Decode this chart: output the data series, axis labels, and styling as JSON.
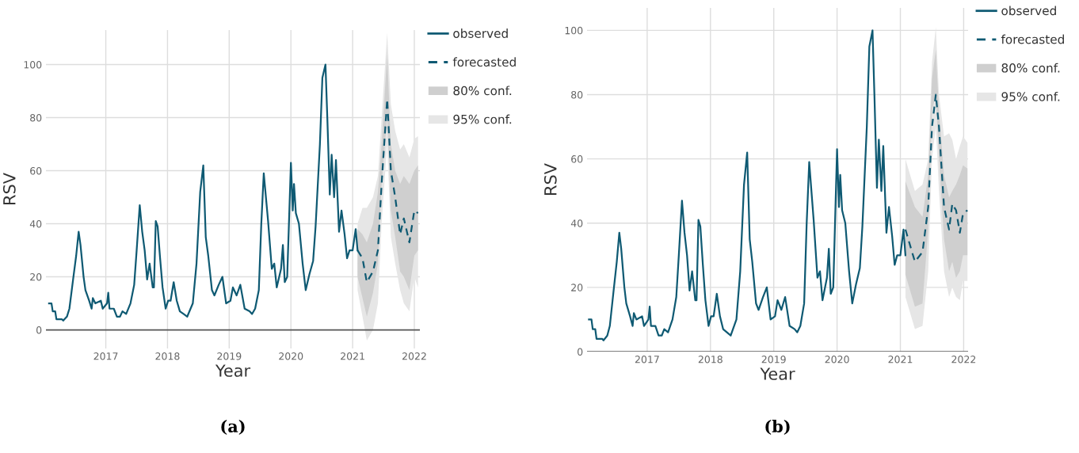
{
  "chart_data": [
    {
      "type": "line",
      "xlabel": "Year",
      "ylabel": "RSV",
      "xlim": [
        2016.03,
        2022.09
      ],
      "ylim": [
        -7,
        113
      ],
      "xticks": [
        2017,
        2018,
        2019,
        2020,
        2021,
        2022
      ],
      "yticks": [
        0,
        20,
        40,
        60,
        80,
        100
      ],
      "grid": true,
      "legend": "right",
      "annotations": [
        "(a)"
      ],
      "series": [
        {
          "name": "observed",
          "color": "#0f5a73",
          "line_style": "solid",
          "x": [
            2016.08,
            2016.12,
            2016.14,
            2016.18,
            2016.2,
            2016.29,
            2016.31,
            2016.37,
            2016.41,
            2016.47,
            2016.52,
            2016.56,
            2016.59,
            2016.64,
            2016.67,
            2016.73,
            2016.77,
            2016.79,
            2016.83,
            2016.92,
            2016.95,
            2017.02,
            2017.04,
            2017.06,
            2017.13,
            2017.18,
            2017.23,
            2017.27,
            2017.33,
            2017.4,
            2017.46,
            2017.5,
            2017.55,
            2017.59,
            2017.63,
            2017.67,
            2017.71,
            2017.76,
            2017.78,
            2017.81,
            2017.84,
            2017.88,
            2017.92,
            2017.97,
            2018.01,
            2018.05,
            2018.1,
            2018.15,
            2018.2,
            2018.26,
            2018.32,
            2018.41,
            2018.47,
            2018.53,
            2018.58,
            2018.62,
            2018.66,
            2018.72,
            2018.76,
            2018.83,
            2018.89,
            2018.95,
            2019.02,
            2019.06,
            2019.12,
            2019.18,
            2019.25,
            2019.33,
            2019.37,
            2019.42,
            2019.48,
            2019.52,
            2019.56,
            2019.63,
            2019.69,
            2019.73,
            2019.77,
            2019.84,
            2019.87,
            2019.9,
            2019.94,
            2020.0,
            2020.03,
            2020.05,
            2020.08,
            2020.13,
            2020.19,
            2020.24,
            2020.3,
            2020.36,
            2020.4,
            2020.47,
            2020.51,
            2020.56,
            2020.59,
            2020.63,
            2020.66,
            2020.7,
            2020.73,
            2020.78,
            2020.82,
            2020.87,
            2020.91,
            2020.95,
            2021.0,
            2021.05,
            2021.08
          ],
          "values": [
            10,
            10,
            7,
            7,
            4,
            4,
            3.5,
            5,
            8,
            19,
            28,
            37,
            32,
            20,
            15,
            11,
            8,
            12,
            10,
            11,
            8,
            10,
            14,
            8,
            8,
            5,
            5,
            7,
            6,
            10,
            17,
            30,
            47,
            37,
            30,
            19,
            25,
            16,
            16,
            41,
            39,
            27,
            16,
            8,
            11,
            11,
            18,
            11,
            7,
            6,
            5,
            10,
            25,
            52,
            62,
            35,
            28,
            15,
            13,
            17,
            20,
            10,
            11,
            16,
            13,
            17,
            8,
            7,
            6,
            8,
            15,
            40,
            59,
            41,
            23,
            25,
            16,
            23,
            32,
            18,
            20,
            63,
            45,
            55,
            44,
            40,
            25,
            15,
            21,
            26,
            39,
            70,
            95,
            100,
            80,
            51,
            66,
            50,
            64,
            37,
            45,
            36,
            27,
            30,
            30,
            38,
            30
          ]
        },
        {
          "name": "forecasted",
          "color": "#0f5a73",
          "line_style": "dashed",
          "x": [
            2021.08,
            2021.16,
            2021.23,
            2021.33,
            2021.41,
            2021.47,
            2021.56,
            2021.62,
            2021.69,
            2021.77,
            2021.83,
            2021.92,
            2022.0,
            2022.06
          ],
          "values": [
            30,
            27,
            18,
            22,
            30,
            55,
            87,
            60,
            50,
            36,
            42,
            33,
            45,
            44
          ]
        },
        {
          "name": "80% conf.",
          "color": "#cfcfcf",
          "x": [
            2021.08,
            2021.16,
            2021.23,
            2021.33,
            2021.41,
            2021.47,
            2021.56,
            2021.62,
            2021.69,
            2021.77,
            2021.83,
            2021.92,
            2022.0,
            2022.06
          ],
          "values": [
            null,
            null,
            null,
            null,
            null,
            null,
            null,
            null,
            null,
            null,
            null,
            null,
            null,
            null
          ],
          "lower": [
            20,
            12,
            5,
            14,
            25,
            55,
            80,
            45,
            35,
            22,
            20,
            15,
            28,
            30
          ],
          "upper": [
            38,
            36,
            33,
            40,
            52,
            70,
            104,
            70,
            60,
            55,
            58,
            55,
            60,
            62
          ]
        },
        {
          "name": "95% conf.",
          "color": "#e6e6e6",
          "x": [
            2021.08,
            2021.16,
            2021.23,
            2021.33,
            2021.41,
            2021.47,
            2021.56,
            2021.62,
            2021.69,
            2021.77,
            2021.83,
            2021.92,
            2022.0,
            2022.06
          ],
          "values": [
            null,
            null,
            null,
            null,
            null,
            null,
            null,
            null,
            null,
            null,
            null,
            null,
            null,
            null
          ],
          "lower": [
            15,
            5,
            -4,
            0,
            10,
            40,
            70,
            35,
            25,
            15,
            10,
            7,
            20,
            16
          ],
          "upper": [
            40,
            46,
            46,
            50,
            58,
            80,
            112,
            85,
            75,
            68,
            70,
            65,
            72,
            73
          ]
        }
      ]
    },
    {
      "type": "line",
      "xlabel": "Year",
      "ylabel": "RSV",
      "xlim": [
        2016.05,
        2022.07
      ],
      "ylim": [
        0,
        107
      ],
      "xticks": [
        2017,
        2018,
        2019,
        2020,
        2021,
        2022
      ],
      "yticks": [
        0,
        20,
        40,
        60,
        80,
        100
      ],
      "grid": true,
      "legend": "right",
      "annotations": [
        "(b)"
      ],
      "series": [
        {
          "name": "observed",
          "color": "#0f5a73",
          "line_style": "solid",
          "x": [
            2016.08,
            2016.12,
            2016.14,
            2016.18,
            2016.2,
            2016.29,
            2016.31,
            2016.37,
            2016.41,
            2016.47,
            2016.52,
            2016.56,
            2016.59,
            2016.64,
            2016.67,
            2016.73,
            2016.77,
            2016.79,
            2016.83,
            2016.92,
            2016.95,
            2017.02,
            2017.04,
            2017.06,
            2017.13,
            2017.18,
            2017.23,
            2017.27,
            2017.33,
            2017.4,
            2017.46,
            2017.5,
            2017.55,
            2017.59,
            2017.63,
            2017.67,
            2017.71,
            2017.76,
            2017.78,
            2017.81,
            2017.84,
            2017.88,
            2017.92,
            2017.97,
            2018.01,
            2018.05,
            2018.1,
            2018.15,
            2018.2,
            2018.26,
            2018.32,
            2018.41,
            2018.47,
            2018.53,
            2018.58,
            2018.62,
            2018.66,
            2018.72,
            2018.76,
            2018.83,
            2018.89,
            2018.95,
            2019.02,
            2019.06,
            2019.12,
            2019.18,
            2019.25,
            2019.33,
            2019.37,
            2019.42,
            2019.48,
            2019.52,
            2019.56,
            2019.63,
            2019.69,
            2019.73,
            2019.77,
            2019.84,
            2019.87,
            2019.9,
            2019.94,
            2020.0,
            2020.03,
            2020.05,
            2020.08,
            2020.13,
            2020.19,
            2020.24,
            2020.3,
            2020.36,
            2020.4,
            2020.47,
            2020.51,
            2020.56,
            2020.59,
            2020.63,
            2020.66,
            2020.7,
            2020.73,
            2020.78,
            2020.82,
            2020.87,
            2020.91,
            2020.95,
            2021.0,
            2021.05,
            2021.08
          ],
          "values": [
            10,
            10,
            7,
            7,
            4,
            4,
            3.5,
            5,
            8,
            19,
            28,
            37,
            32,
            20,
            15,
            11,
            8,
            12,
            10,
            11,
            8,
            10,
            14,
            8,
            8,
            5,
            5,
            7,
            6,
            10,
            17,
            30,
            47,
            37,
            30,
            19,
            25,
            16,
            16,
            41,
            39,
            27,
            16,
            8,
            11,
            11,
            18,
            11,
            7,
            6,
            5,
            10,
            25,
            52,
            62,
            35,
            28,
            15,
            13,
            17,
            20,
            10,
            11,
            16,
            13,
            17,
            8,
            7,
            6,
            8,
            15,
            40,
            59,
            41,
            23,
            25,
            16,
            23,
            32,
            18,
            20,
            63,
            45,
            55,
            44,
            40,
            25,
            15,
            21,
            26,
            39,
            70,
            95,
            100,
            80,
            51,
            66,
            50,
            64,
            37,
            45,
            36,
            27,
            30,
            30,
            38,
            30
          ]
        },
        {
          "name": "forecasted",
          "color": "#0f5a73",
          "line_style": "dashed",
          "x": [
            2021.08,
            2021.23,
            2021.35,
            2021.44,
            2021.5,
            2021.56,
            2021.61,
            2021.69,
            2021.77,
            2021.82,
            2021.88,
            2021.94,
            2021.99,
            2022.06
          ],
          "values": [
            38,
            28,
            31,
            45,
            70,
            80,
            70,
            45,
            38,
            46,
            44,
            37,
            43,
            44
          ]
        },
        {
          "name": "80% conf.",
          "color": "#cfcfcf",
          "x": [
            2021.08,
            2021.23,
            2021.35,
            2021.44,
            2021.5,
            2021.56,
            2021.61,
            2021.69,
            2021.77,
            2021.82,
            2021.88,
            2021.94,
            2021.99,
            2022.06
          ],
          "values": [
            null,
            null,
            null,
            null,
            null,
            null,
            null,
            null,
            null,
            null,
            null,
            null,
            null,
            null
          ],
          "lower": [
            24,
            14,
            15,
            38,
            75,
            80,
            60,
            35,
            25,
            28,
            23,
            25,
            30,
            30
          ],
          "upper": [
            53,
            45,
            42,
            55,
            85,
            94,
            75,
            55,
            48,
            50,
            52,
            55,
            58,
            57
          ]
        },
        {
          "name": "95% conf.",
          "color": "#e6e6e6",
          "x": [
            2021.08,
            2021.23,
            2021.35,
            2021.44,
            2021.5,
            2021.56,
            2021.61,
            2021.69,
            2021.77,
            2021.82,
            2021.88,
            2021.94,
            2021.99,
            2022.06
          ],
          "values": [
            null,
            null,
            null,
            null,
            null,
            null,
            null,
            null,
            null,
            null,
            null,
            null,
            null,
            null
          ],
          "lower": [
            17,
            7,
            8,
            25,
            60,
            70,
            50,
            25,
            17,
            20,
            17,
            16,
            22,
            22
          ],
          "upper": [
            60,
            50,
            52,
            60,
            90,
            101,
            80,
            67,
            68,
            66,
            60,
            64,
            67,
            65
          ]
        }
      ]
    }
  ]
}
